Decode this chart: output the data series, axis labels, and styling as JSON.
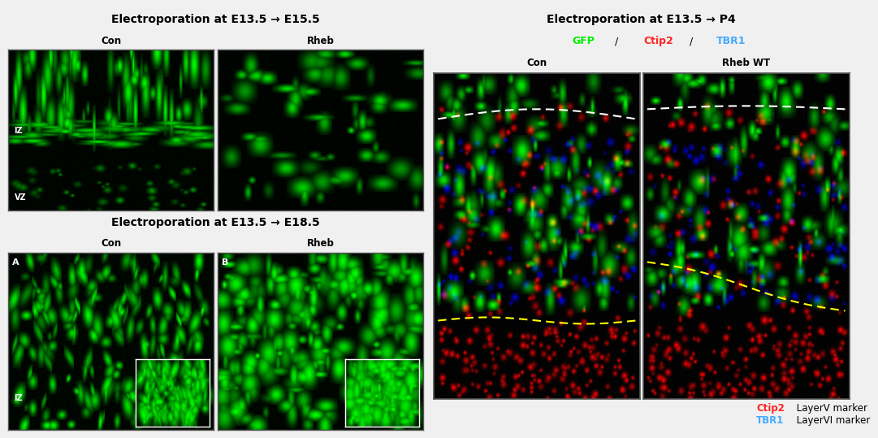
{
  "left_panel": {
    "title": "Electroporation at E13.5 → E15.5",
    "title2": "Electroporation at E13.5 → E18.5",
    "col1_label": "Con",
    "col2_label": "Rheb",
    "col3_label": "Con",
    "col4_label": "Rheb",
    "label_IZ_top": "IZ",
    "label_VZ": "VZ",
    "label_IZ_bot": "IZ"
  },
  "right_panel": {
    "title": "Electroporation at E13.5 → P4",
    "subtitle_GFP": "GFP",
    "subtitle_Ctip2": "Ctip2",
    "subtitle_TBR1": "TBR1",
    "col1_label": "Con",
    "col2_label": "Rheb WT",
    "legend1_color": "#ff2222",
    "legend1_text": "Ctip2  LayerV marker",
    "legend2_color": "#44aaff",
    "legend2_text": "TBR1  LayerVI marker"
  },
  "bg_color": "#f0f0f0",
  "panel_bg": "#000000",
  "header_bg": "#e8e8e8",
  "border_color": "#555555",
  "title_fontsize": 10,
  "label_fontsize": 8.5,
  "small_fontsize": 7,
  "outer_border": "#333333"
}
